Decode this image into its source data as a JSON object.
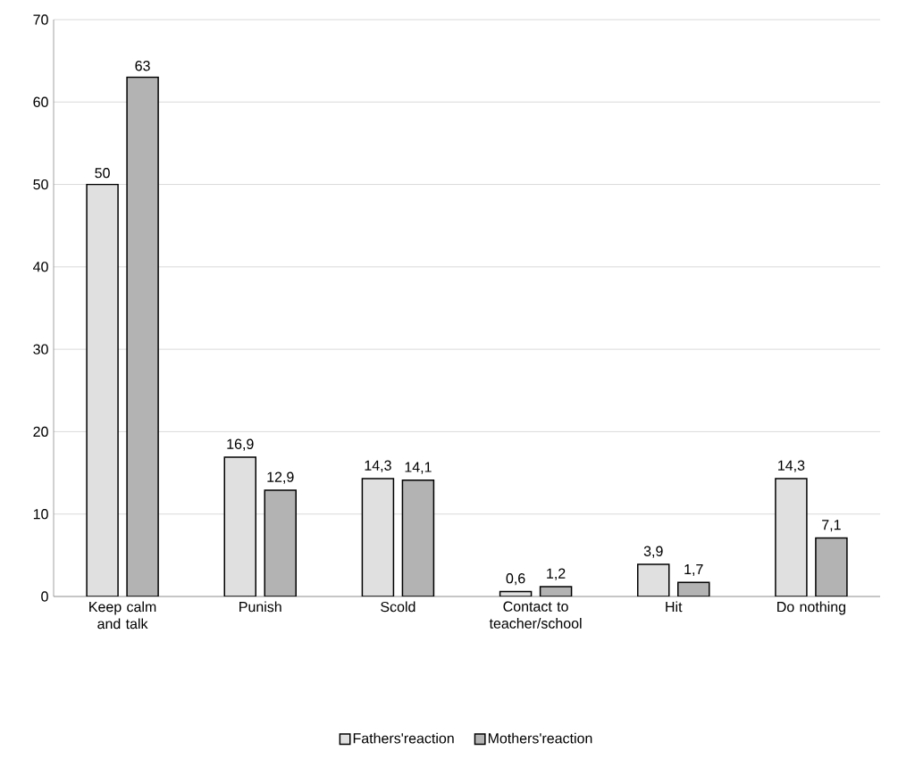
{
  "chart_data": {
    "type": "bar",
    "categories": [
      "Keep calm and talk",
      "Punish",
      "Scold",
      "Contact to teacher/school",
      "Hit",
      "Do nothing"
    ],
    "series": [
      {
        "name": "Fathers'reaction",
        "color": "#e0e0e0",
        "values": [
          50,
          16.9,
          14.3,
          0.6,
          3.9,
          14.3
        ],
        "value_labels": [
          "50",
          "16,9",
          "14,3",
          "0,6",
          "3,9",
          "14,3"
        ]
      },
      {
        "name": "Mothers'reaction",
        "color": "#b3b3b3",
        "values": [
          63,
          12.9,
          14.1,
          1.2,
          1.7,
          7.1
        ],
        "value_labels": [
          "63",
          "12,9",
          "14,1",
          "1,2",
          "1,7",
          "7,1"
        ]
      }
    ],
    "ylim": [
      0,
      70
    ],
    "yticks": [
      0,
      10,
      20,
      30,
      40,
      50,
      60,
      70
    ],
    "grid": "y",
    "legend": "bottom"
  }
}
